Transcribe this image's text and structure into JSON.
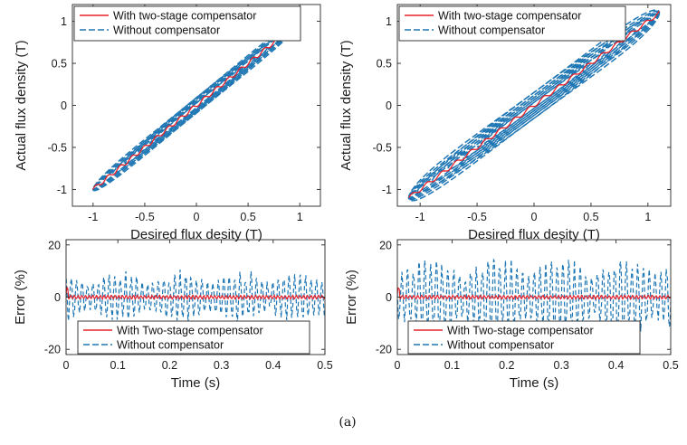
{
  "figure": {
    "caption": "(a)"
  },
  "colors": {
    "compensated": "#e8202a",
    "uncompensated": "#1f77b4",
    "axis": "#262626"
  },
  "chart_data": [
    {
      "id": "top-left",
      "type": "line",
      "xlabel": "Desired flux desity (T)",
      "ylabel": "Actual flux density (T)",
      "xlim": [
        -1.2,
        1.2
      ],
      "ylim": [
        -1.2,
        1.2
      ],
      "xticks": [
        -1,
        -0.5,
        0,
        0.5,
        1
      ],
      "xticklabels": [
        "-1",
        "-0.5",
        "0",
        "0.5",
        "1"
      ],
      "yticks": [
        -1,
        -0.5,
        0,
        0.5,
        1
      ],
      "yticklabels": [
        "-1",
        "-0.5",
        "0",
        "0.5",
        "1"
      ],
      "grid": false,
      "legend": {
        "position": "top-left"
      },
      "loops": [
        0.04,
        0.07,
        0.1,
        0.13
      ],
      "amplitude": 1.0,
      "series": [
        {
          "name": "With two-stage compensator",
          "style": "solid",
          "color": "#e8202a"
        },
        {
          "name": "Without compensator",
          "style": "dashed",
          "color": "#1f77b4"
        }
      ]
    },
    {
      "id": "top-right",
      "type": "line",
      "xlabel": "Desired flux desity (T)",
      "ylabel": "Actual flux density (T)",
      "xlim": [
        -1.2,
        1.2
      ],
      "ylim": [
        -1.2,
        1.2
      ],
      "xticks": [
        -1,
        -0.5,
        0,
        0.5,
        1
      ],
      "xticklabels": [
        "-1",
        "-0.5",
        "0",
        "0.5",
        "1"
      ],
      "yticks": [
        -1,
        -0.5,
        0,
        0.5,
        1
      ],
      "yticklabels": [
        "-1",
        "-0.5",
        "0",
        "0.5",
        "1"
      ],
      "grid": false,
      "legend": {
        "position": "top-left"
      },
      "loops": [
        0.05,
        0.09,
        0.13,
        0.17,
        0.22
      ],
      "amplitude": 1.1,
      "series": [
        {
          "name": "With two-stage compensator",
          "style": "solid",
          "color": "#e8202a"
        },
        {
          "name": "Without compensator",
          "style": "dashed",
          "color": "#1f77b4"
        }
      ]
    },
    {
      "id": "bottom-left",
      "type": "line",
      "xlabel": "Time (s)",
      "ylabel": "Error (%)",
      "xlim": [
        0,
        0.5
      ],
      "ylim": [
        -22,
        22
      ],
      "xticks": [
        0,
        0.1,
        0.2,
        0.3,
        0.4,
        0.5
      ],
      "xticklabels": [
        "0",
        "0.1",
        "0.2",
        "0.3",
        "0.4",
        "0.5"
      ],
      "yticks": [
        -20,
        0,
        20
      ],
      "yticklabels": [
        "-20",
        "0",
        "20"
      ],
      "grid": false,
      "legend": {
        "position": "bottom-left"
      },
      "amplitude": 10,
      "series": [
        {
          "name": "With Two-stage compensator",
          "style": "solid",
          "color": "#e8202a"
        },
        {
          "name": "Without compensator",
          "style": "dashed",
          "color": "#1f77b4"
        }
      ]
    },
    {
      "id": "bottom-right",
      "type": "line",
      "xlabel": "Time (s)",
      "ylabel": "Error (%)",
      "xlim": [
        0,
        0.5
      ],
      "ylim": [
        -22,
        22
      ],
      "xticks": [
        0,
        0.1,
        0.2,
        0.3,
        0.4,
        0.5
      ],
      "xticklabels": [
        "0",
        "0.1",
        "0.2",
        "0.3",
        "0.4",
        "0.5"
      ],
      "yticks": [
        -20,
        0,
        20
      ],
      "yticklabels": [
        "-20",
        "0",
        "20"
      ],
      "grid": false,
      "legend": {
        "position": "bottom-left"
      },
      "amplitude": 16,
      "series": [
        {
          "name": "With Two-stage compensator",
          "style": "solid",
          "color": "#e8202a"
        },
        {
          "name": "Without compensator",
          "style": "dashed",
          "color": "#1f77b4"
        }
      ]
    }
  ]
}
